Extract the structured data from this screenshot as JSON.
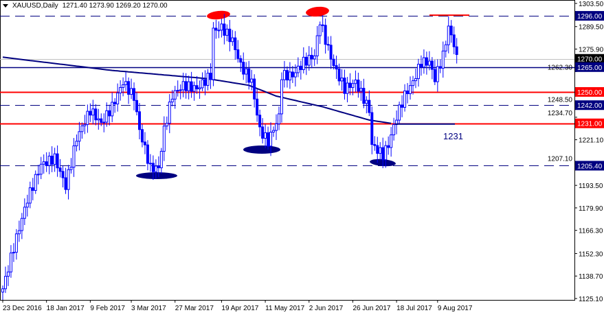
{
  "header": {
    "symbol": "XAUUSD,Daily",
    "ohlc": "1271.40 1273.90 1269.20 1270.00"
  },
  "colors": {
    "candle": "#0000ff",
    "ma": "#000080",
    "support": "#000080",
    "resistance": "#ff0000",
    "current": "#c0c0c0"
  },
  "chart_data": {
    "type": "candlestick",
    "ylim": [
      1125.1,
      1303.5
    ],
    "y_ticks": [
      "1303.50",
      "1289.50",
      "1275.90",
      "1262.30",
      "1248.50",
      "1234.70",
      "1221.10",
      "1207.10",
      "1193.50",
      "1179.90",
      "1166.30",
      "1152.30",
      "1138.70",
      "1125.10"
    ],
    "x_ticks": [
      {
        "bar": 0,
        "label": "23 Dec 2016"
      },
      {
        "bar": 16,
        "label": "18 Jan 2017"
      },
      {
        "bar": 32,
        "label": "9 Feb 2017"
      },
      {
        "bar": 47,
        "label": "3 Mar 2017"
      },
      {
        "bar": 63,
        "label": "27 Mar 2017"
      },
      {
        "bar": 80,
        "label": "19 Apr 2017"
      },
      {
        "bar": 96,
        "label": "11 May 2017"
      },
      {
        "bar": 112,
        "label": "2 Jun 2017"
      },
      {
        "bar": 128,
        "label": "26 Jun 2017"
      },
      {
        "bar": 144,
        "label": "18 Jul 2017"
      },
      {
        "bar": 159,
        "label": "9 Aug 2017"
      }
    ],
    "close_path": [
      [
        0,
        1131
      ],
      [
        4,
        1156
      ],
      [
        9,
        1185
      ],
      [
        14,
        1206
      ],
      [
        19,
        1210
      ],
      [
        23,
        1193
      ],
      [
        27,
        1222
      ],
      [
        32,
        1239
      ],
      [
        36,
        1231
      ],
      [
        40,
        1241
      ],
      [
        44,
        1256
      ],
      [
        48,
        1247
      ],
      [
        50,
        1227
      ],
      [
        54,
        1204
      ],
      [
        57,
        1204
      ],
      [
        59,
        1227
      ],
      [
        62,
        1248
      ],
      [
        66,
        1254
      ],
      [
        71,
        1252
      ],
      [
        76,
        1260
      ],
      [
        77,
        1287
      ],
      [
        80,
        1289
      ],
      [
        84,
        1281
      ],
      [
        87,
        1266
      ],
      [
        91,
        1256
      ],
      [
        94,
        1227
      ],
      [
        97,
        1220
      ],
      [
        101,
        1235
      ],
      [
        102,
        1260
      ],
      [
        106,
        1260
      ],
      [
        110,
        1268
      ],
      [
        114,
        1272
      ],
      [
        116,
        1293
      ],
      [
        119,
        1276
      ],
      [
        121,
        1266
      ],
      [
        125,
        1252
      ],
      [
        129,
        1256
      ],
      [
        132,
        1246
      ],
      [
        134,
        1239
      ],
      [
        135,
        1218
      ],
      [
        139,
        1212
      ],
      [
        141,
        1218
      ],
      [
        144,
        1235
      ],
      [
        147,
        1248
      ],
      [
        150,
        1256
      ],
      [
        153,
        1268
      ],
      [
        156,
        1268
      ],
      [
        158,
        1258
      ],
      [
        161,
        1272
      ],
      [
        163,
        1289
      ],
      [
        165,
        1279
      ],
      [
        166,
        1270
      ]
    ],
    "moving_average": [
      [
        0,
        1271
      ],
      [
        40,
        1263
      ],
      [
        75,
        1258
      ],
      [
        90,
        1254
      ],
      [
        100,
        1247.5
      ],
      [
        117,
        1241
      ],
      [
        134,
        1233
      ],
      [
        142,
        1231
      ]
    ],
    "levels": [
      {
        "price": 1296.0,
        "label": "1296.00",
        "style": "dashed",
        "color": "#000080"
      },
      {
        "price": 1270.0,
        "label": "1270.00",
        "style": "current",
        "color": "#000000"
      },
      {
        "price": 1265.0,
        "label": "1265.00",
        "style": "solid",
        "color": "#000080"
      },
      {
        "price": 1250.0,
        "label": "1250.00",
        "style": "solid",
        "color": "#ff0000"
      },
      {
        "price": 1242.0,
        "label": "1242.00",
        "style": "dashed",
        "color": "#000080"
      },
      {
        "price": 1231.0,
        "label": "1231.00",
        "style": "solid",
        "color": "#ff0000"
      },
      {
        "price": 1205.4,
        "label": "1205.40",
        "style": "dashed",
        "color": "#000080"
      }
    ],
    "annotation": {
      "text": "1231",
      "price": 1231
    }
  }
}
